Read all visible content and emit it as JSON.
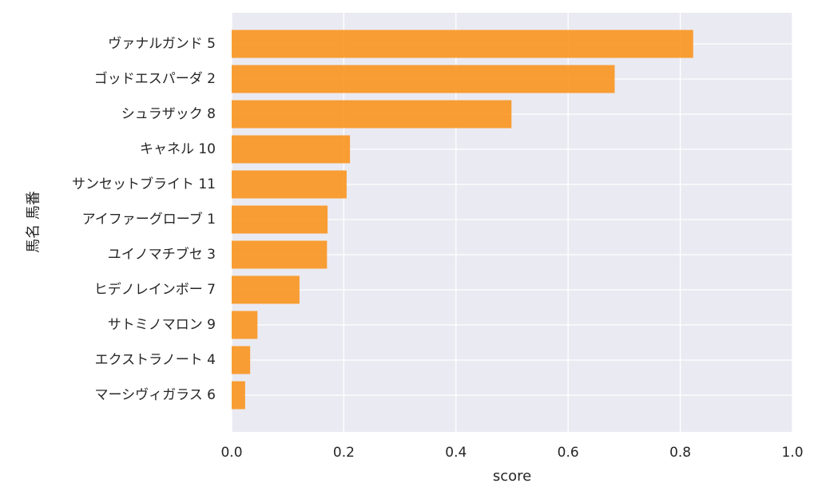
{
  "chart_data": {
    "type": "bar",
    "orientation": "horizontal",
    "categories": [
      "ヴァナルガンド 5",
      "ゴッドエスパーダ 2",
      "シュラザック 8",
      "キャネル 10",
      "サンセットブライト 11",
      "アイファーグローブ 1",
      "ユイノマチブセ 3",
      "ヒデノレインボー 7",
      "サトミノマロン 9",
      "エクストラノート 4",
      "マーシヴィガラス 6"
    ],
    "values": [
      0.823,
      0.683,
      0.499,
      0.211,
      0.205,
      0.171,
      0.17,
      0.121,
      0.046,
      0.033,
      0.024
    ],
    "xlabel": "score",
    "ylabel": "馬名 馬番",
    "xlim": [
      0.0,
      1.0
    ],
    "xticks": [
      "0.0",
      "0.2",
      "0.4",
      "0.6",
      "0.8",
      "1.0"
    ],
    "grid": true,
    "colors": {
      "bar": "#f9951f",
      "plot_background": "#eaeaf2",
      "grid": "#ffffff"
    }
  }
}
